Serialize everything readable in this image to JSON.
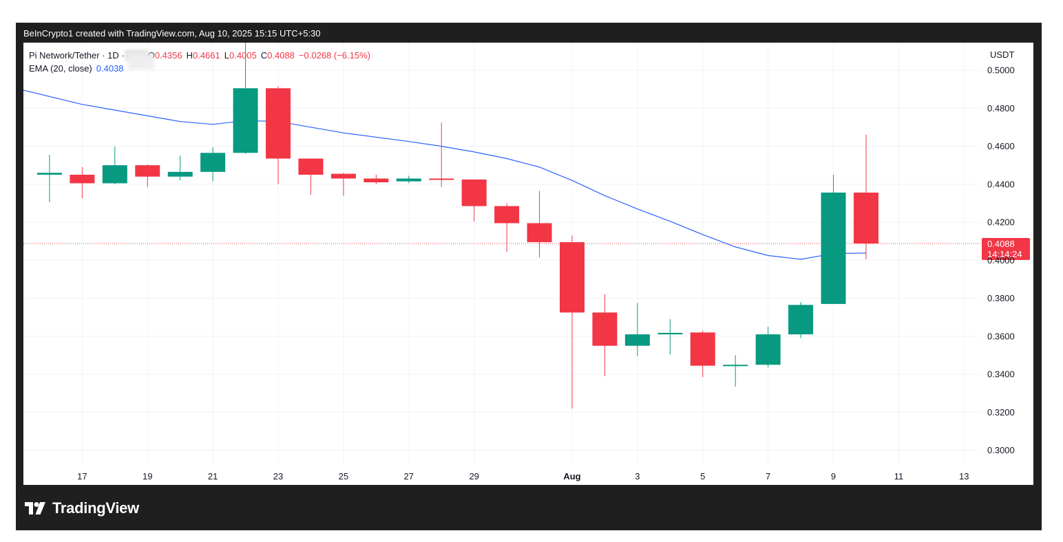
{
  "header": {
    "credit": "BeInCrypto1 created with TradingView.com, Aug 10, 2025 15:15 UTC+5:30"
  },
  "legend": {
    "symbol": "Pi Network/Tether · 1D · ",
    "o_label": "O",
    "o_value": "0.4356",
    "h_label": "H",
    "h_value": "0.4661",
    "l_label": "L",
    "l_value": "0.4005",
    "c_label": "C",
    "c_value": "0.4088",
    "change": "−0.0268 (−6.15%)",
    "ema_label": "EMA (20, close)",
    "ema_value": "0.4038"
  },
  "footer": {
    "brand": "TradingView"
  },
  "colors": {
    "up": "#089981",
    "down": "#f23645",
    "ema": "#2962ff",
    "frame": "#1f1f1f"
  },
  "chart_data": {
    "type": "candlestick",
    "currency": "USDT",
    "ylim": [
      0.293,
      0.5145
    ],
    "y_ticks": [
      "0.3000",
      "0.3200",
      "0.3400",
      "0.3600",
      "0.3800",
      "0.4000",
      "0.4200",
      "0.4400",
      "0.4600",
      "0.4800",
      "0.5000"
    ],
    "x_range": [
      15.2,
      44.5
    ],
    "x_ticks": [
      {
        "day": 17,
        "label": "17"
      },
      {
        "day": 19,
        "label": "19"
      },
      {
        "day": 21,
        "label": "21"
      },
      {
        "day": 23,
        "label": "23"
      },
      {
        "day": 25,
        "label": "25"
      },
      {
        "day": 27,
        "label": "27"
      },
      {
        "day": 29,
        "label": "29"
      },
      {
        "day": 32,
        "label": "Aug"
      },
      {
        "day": 34,
        "label": "3"
      },
      {
        "day": 36,
        "label": "5"
      },
      {
        "day": 38,
        "label": "7"
      },
      {
        "day": 40,
        "label": "9"
      },
      {
        "day": 42,
        "label": "11"
      },
      {
        "day": 44,
        "label": "13"
      }
    ],
    "candles": [
      {
        "day": 16,
        "o": 0.445,
        "h": 0.4555,
        "l": 0.4305,
        "c": 0.446
      },
      {
        "day": 17,
        "o": 0.445,
        "h": 0.449,
        "l": 0.4325,
        "c": 0.4405
      },
      {
        "day": 18,
        "o": 0.4405,
        "h": 0.46,
        "l": 0.44,
        "c": 0.45
      },
      {
        "day": 19,
        "o": 0.45,
        "h": 0.4505,
        "l": 0.4385,
        "c": 0.444
      },
      {
        "day": 20,
        "o": 0.444,
        "h": 0.455,
        "l": 0.442,
        "c": 0.4465
      },
      {
        "day": 21,
        "o": 0.4465,
        "h": 0.4595,
        "l": 0.4415,
        "c": 0.4565
      },
      {
        "day": 22,
        "o": 0.4565,
        "h": 0.516,
        "l": 0.456,
        "c": 0.4905
      },
      {
        "day": 23,
        "o": 0.4905,
        "h": 0.4915,
        "l": 0.44,
        "c": 0.4535
      },
      {
        "day": 24,
        "o": 0.4535,
        "h": 0.4535,
        "l": 0.4345,
        "c": 0.445
      },
      {
        "day": 25,
        "o": 0.4455,
        "h": 0.446,
        "l": 0.434,
        "c": 0.443
      },
      {
        "day": 26,
        "o": 0.443,
        "h": 0.445,
        "l": 0.44,
        "c": 0.441
      },
      {
        "day": 27,
        "o": 0.4415,
        "h": 0.4445,
        "l": 0.4405,
        "c": 0.443
      },
      {
        "day": 28,
        "o": 0.443,
        "h": 0.4725,
        "l": 0.4385,
        "c": 0.4425
      },
      {
        "day": 29,
        "o": 0.4425,
        "h": 0.4425,
        "l": 0.4205,
        "c": 0.4285
      },
      {
        "day": 30,
        "o": 0.4285,
        "h": 0.43,
        "l": 0.4045,
        "c": 0.4195
      },
      {
        "day": 31,
        "o": 0.4195,
        "h": 0.4365,
        "l": 0.4015,
        "c": 0.4095
      },
      {
        "day": 32,
        "o": 0.4095,
        "h": 0.413,
        "l": 0.322,
        "c": 0.3725
      },
      {
        "day": 33,
        "o": 0.3725,
        "h": 0.382,
        "l": 0.339,
        "c": 0.355
      },
      {
        "day": 34,
        "o": 0.355,
        "h": 0.3775,
        "l": 0.3495,
        "c": 0.361
      },
      {
        "day": 35,
        "o": 0.361,
        "h": 0.369,
        "l": 0.3505,
        "c": 0.3618
      },
      {
        "day": 36,
        "o": 0.362,
        "h": 0.363,
        "l": 0.3385,
        "c": 0.3445
      },
      {
        "day": 37,
        "o": 0.3445,
        "h": 0.35,
        "l": 0.3335,
        "c": 0.345
      },
      {
        "day": 38,
        "o": 0.345,
        "h": 0.365,
        "l": 0.3435,
        "c": 0.361
      },
      {
        "day": 39,
        "o": 0.361,
        "h": 0.378,
        "l": 0.359,
        "c": 0.3765
      },
      {
        "day": 40,
        "o": 0.377,
        "h": 0.445,
        "l": 0.377,
        "c": 0.4356
      },
      {
        "day": 41,
        "o": 0.4356,
        "h": 0.4661,
        "l": 0.4005,
        "c": 0.4088
      }
    ],
    "ema_series": {
      "name": "EMA (20, close)",
      "points": [
        {
          "day": 15.2,
          "v": 0.4895
        },
        {
          "day": 17,
          "v": 0.482
        },
        {
          "day": 19,
          "v": 0.476
        },
        {
          "day": 20,
          "v": 0.473
        },
        {
          "day": 21,
          "v": 0.4715
        },
        {
          "day": 22,
          "v": 0.4735
        },
        {
          "day": 23,
          "v": 0.473
        },
        {
          "day": 25,
          "v": 0.467
        },
        {
          "day": 27,
          "v": 0.4625
        },
        {
          "day": 28,
          "v": 0.46
        },
        {
          "day": 29,
          "v": 0.457
        },
        {
          "day": 30,
          "v": 0.4535
        },
        {
          "day": 31,
          "v": 0.449
        },
        {
          "day": 32,
          "v": 0.442
        },
        {
          "day": 33,
          "v": 0.434
        },
        {
          "day": 34,
          "v": 0.427
        },
        {
          "day": 35,
          "v": 0.4205
        },
        {
          "day": 36,
          "v": 0.4135
        },
        {
          "day": 37,
          "v": 0.407
        },
        {
          "day": 38,
          "v": 0.4025
        },
        {
          "day": 39,
          "v": 0.4005
        },
        {
          "day": 40,
          "v": 0.4035
        },
        {
          "day": 41,
          "v": 0.4038
        }
      ]
    },
    "last_price": {
      "value": 0.4088,
      "label": "0.4088",
      "countdown": "14:14:24"
    }
  }
}
